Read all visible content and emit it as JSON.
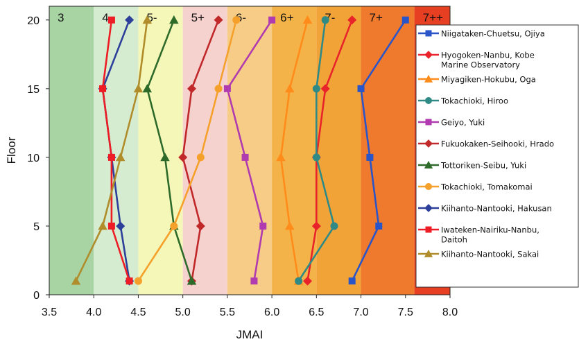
{
  "chart_data": {
    "type": "line",
    "title": "",
    "xlabel": "JMAI",
    "ylabel": "Floor",
    "xlim": [
      3.5,
      8.0
    ],
    "ylim": [
      0,
      21
    ],
    "x_ticks": [
      "3.5",
      "4.0",
      "4.5",
      "5.0",
      "5.5",
      "6.0",
      "6.5",
      "7.0",
      "7.5",
      "8.0"
    ],
    "y_ticks": [
      "0",
      "5",
      "10",
      "15",
      "20"
    ],
    "grid": false,
    "legend_position": "right",
    "intensity_bands": [
      {
        "label": "3",
        "from": 3.5,
        "to": 4.0,
        "color": "#a8d4a4"
      },
      {
        "label": "4",
        "from": 4.0,
        "to": 4.5,
        "color": "#d6ecd0"
      },
      {
        "label": "5-",
        "from": 4.5,
        "to": 5.0,
        "color": "#f5f7b8"
      },
      {
        "label": "5+",
        "from": 5.0,
        "to": 5.5,
        "color": "#f6d2cf"
      },
      {
        "label": "6-",
        "from": 5.5,
        "to": 6.0,
        "color": "#f7cc86"
      },
      {
        "label": "6+",
        "from": 6.0,
        "to": 6.5,
        "color": "#f4b348"
      },
      {
        "label": "7-",
        "from": 6.5,
        "to": 7.0,
        "color": "#f2a338"
      },
      {
        "label": "7+",
        "from": 7.0,
        "to": 7.6,
        "color": "#ef7a2e"
      },
      {
        "label": "7++",
        "from": 7.6,
        "to": 8.0,
        "color": "#e63f22"
      }
    ],
    "series": [
      {
        "name": "Niigataken-Chuetsu, Ojiya",
        "color": "#2a55c8",
        "marker": "square",
        "points": [
          [
            6.9,
            1
          ],
          [
            7.2,
            5
          ],
          [
            7.1,
            10
          ],
          [
            7.0,
            15
          ],
          [
            7.5,
            20
          ]
        ]
      },
      {
        "name": "Hyogoken-Nanbu, Kobe Marine Observatory",
        "color": "#e8242a",
        "marker": "diamond",
        "points": [
          [
            6.4,
            1
          ],
          [
            6.5,
            5
          ],
          [
            6.5,
            10
          ],
          [
            6.6,
            15
          ],
          [
            6.9,
            20
          ]
        ]
      },
      {
        "name": "Miyagiken-Hokubu, Oga",
        "color": "#ff8c1a",
        "marker": "triangle",
        "points": [
          [
            6.3,
            1
          ],
          [
            6.2,
            5
          ],
          [
            6.1,
            10
          ],
          [
            6.2,
            15
          ],
          [
            6.4,
            20
          ]
        ]
      },
      {
        "name": "Tokachioki, Hiroo",
        "color": "#2f8a86",
        "marker": "circle",
        "points": [
          [
            6.3,
            1
          ],
          [
            6.7,
            5
          ],
          [
            6.5,
            10
          ],
          [
            6.5,
            15
          ],
          [
            6.6,
            20
          ]
        ]
      },
      {
        "name": "Geiyo, Yuki",
        "color": "#b03ab0",
        "marker": "square",
        "points": [
          [
            5.8,
            1
          ],
          [
            5.9,
            5
          ],
          [
            5.7,
            10
          ],
          [
            5.5,
            15
          ],
          [
            6.0,
            20
          ]
        ]
      },
      {
        "name": "Fukuokaken-Seihooki, Hrado",
        "color": "#c0282a",
        "marker": "diamond",
        "points": [
          [
            5.1,
            1
          ],
          [
            5.2,
            5
          ],
          [
            5.0,
            10
          ],
          [
            5.1,
            15
          ],
          [
            5.4,
            20
          ]
        ]
      },
      {
        "name": "Tottoriken-Seibu, Yuki",
        "color": "#2e6b2a",
        "marker": "triangle",
        "points": [
          [
            5.1,
            1
          ],
          [
            4.9,
            5
          ],
          [
            4.8,
            10
          ],
          [
            4.6,
            15
          ],
          [
            4.9,
            20
          ]
        ]
      },
      {
        "name": "Tokachioki, Tomakomai",
        "color": "#f5a02a",
        "marker": "circle",
        "points": [
          [
            4.5,
            1
          ],
          [
            4.9,
            5
          ],
          [
            5.2,
            10
          ],
          [
            5.4,
            15
          ],
          [
            5.6,
            20
          ]
        ]
      },
      {
        "name": "Kiihanto-Nantooki, Hakusan",
        "color": "#2c3f9a",
        "marker": "diamond",
        "points": [
          [
            4.4,
            1
          ],
          [
            4.3,
            5
          ],
          [
            4.2,
            10
          ],
          [
            4.1,
            15
          ],
          [
            4.4,
            20
          ]
        ]
      },
      {
        "name": "Iwateken-Nairiku-Nanbu, Daitoh",
        "color": "#ee1c24",
        "marker": "square",
        "points": [
          [
            4.4,
            1
          ],
          [
            4.2,
            5
          ],
          [
            4.2,
            10
          ],
          [
            4.1,
            15
          ],
          [
            4.2,
            20
          ]
        ]
      },
      {
        "name": "Kiihanto-Nantooki, Sakai",
        "color": "#b08c2a",
        "marker": "triangle",
        "points": [
          [
            3.8,
            1
          ],
          [
            4.1,
            5
          ],
          [
            4.3,
            10
          ],
          [
            4.5,
            15
          ],
          [
            4.6,
            20
          ]
        ]
      }
    ]
  }
}
